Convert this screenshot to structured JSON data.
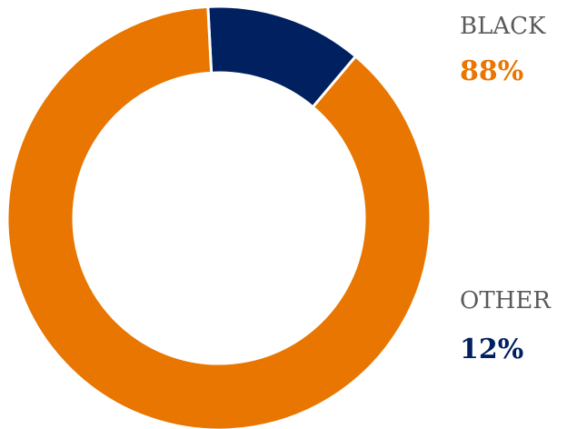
{
  "chart_data": {
    "type": "pie",
    "donut": true,
    "categories": [
      "BLACK",
      "OTHER"
    ],
    "values": [
      88,
      12
    ],
    "value_labels": [
      "88%",
      "12%"
    ],
    "colors": [
      "#e87600",
      "#002060"
    ],
    "legend_placement": "right",
    "title": "",
    "xlabel": "",
    "ylabel": ""
  }
}
